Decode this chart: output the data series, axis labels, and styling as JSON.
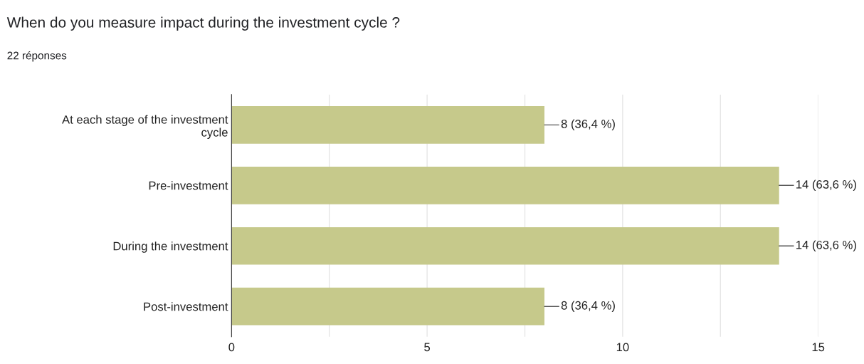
{
  "chart_data": {
    "type": "bar",
    "orientation": "horizontal",
    "title": "When do you measure impact during the investment cycle ?",
    "subtitle": "22 réponses",
    "categories": [
      "At each stage of the investment cycle",
      "Pre-investment",
      "During the investment",
      "Post-investment"
    ],
    "values": [
      8,
      14,
      14,
      8
    ],
    "value_labels": [
      "8 (36,4 %)",
      "14 (63,6 %)",
      "14 (63,6 %)",
      "8 (36,4 %)"
    ],
    "color": "#c6c98b",
    "xlim": [
      0,
      15
    ],
    "xticks": [
      0,
      {
        "value": 2.5,
        "label": null
      },
      5,
      {
        "value": 7.5,
        "label": null
      },
      10,
      {
        "value": 12.5,
        "label": null
      },
      15
    ],
    "grid": "x"
  }
}
